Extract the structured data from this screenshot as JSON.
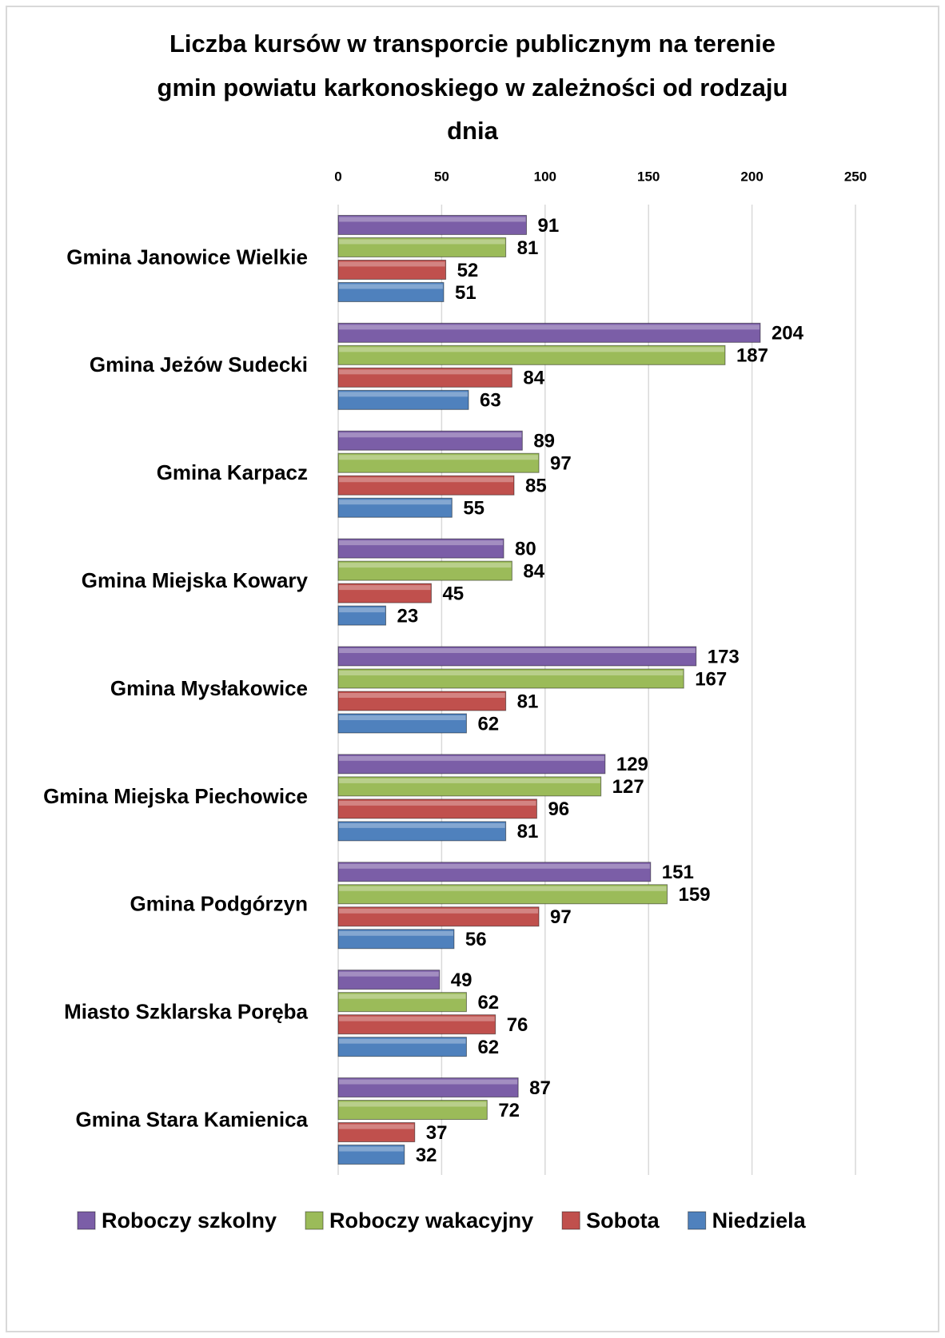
{
  "chart_data": {
    "type": "bar",
    "orientation": "horizontal",
    "title": [
      "Liczba kursów w transporcie publicznym na terenie",
      "gmin powiatu karkonoskiego w zależności od rodzaju",
      "dnia"
    ],
    "categories": [
      "Gmina Janowice Wielkie",
      "Gmina Jeżów Sudecki",
      "Gmina Karpacz",
      "Gmina Miejska Kowary",
      "Gmina Mysłakowice",
      "Gmina Miejska Piechowice",
      "Gmina Podgórzyn",
      "Miasto Szklarska Poręba",
      "Gmina Stara Kamienica"
    ],
    "series": [
      {
        "name": "Roboczy szkolny",
        "color": "#7b5ea7",
        "values": [
          91,
          204,
          89,
          80,
          173,
          129,
          151,
          49,
          87
        ]
      },
      {
        "name": "Roboczy wakacyjny",
        "color": "#9bbb59",
        "values": [
          81,
          187,
          97,
          84,
          167,
          127,
          159,
          62,
          72
        ]
      },
      {
        "name": "Sobota",
        "color": "#c0504d",
        "values": [
          52,
          84,
          85,
          45,
          81,
          96,
          97,
          76,
          37
        ]
      },
      {
        "name": "Niedziela",
        "color": "#4f81bd",
        "values": [
          51,
          63,
          55,
          23,
          62,
          81,
          56,
          62,
          32
        ]
      }
    ],
    "xlim": [
      0,
      250
    ],
    "xticks": [
      0,
      50,
      100,
      150,
      200,
      250
    ],
    "grid": true,
    "legend": "bottom"
  }
}
